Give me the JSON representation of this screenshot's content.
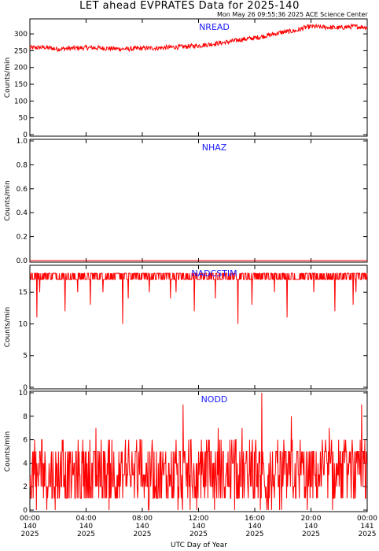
{
  "header": {
    "title": "LET ahead EVPRATES Data for 2025-140",
    "timestamp": "Mon May 26 09:55:36 2025 ACE Science Center"
  },
  "xaxis": {
    "label": "UTC Day of Year",
    "ticks": [
      {
        "time": "00:00",
        "doy": "140",
        "year": "2025"
      },
      {
        "time": "04:00",
        "doy": "140",
        "year": "2025"
      },
      {
        "time": "08:00",
        "doy": "140",
        "year": "2025"
      },
      {
        "time": "12:00",
        "doy": "140",
        "year": "2025"
      },
      {
        "time": "16:00",
        "doy": "140",
        "year": "2025"
      },
      {
        "time": "20:00",
        "doy": "140",
        "year": "2025"
      },
      {
        "time": "00:00",
        "doy": "141",
        "year": "2025"
      }
    ],
    "range_hours": [
      0,
      24
    ]
  },
  "colors": {
    "series": "#ff0000",
    "panel_label": "#1a1aff",
    "axes": "#000000"
  },
  "chart_data": [
    {
      "type": "line",
      "name": "NREAD",
      "ylabel": "Counts/min",
      "ylim": [
        0,
        340
      ],
      "yticks": [
        "0",
        "50",
        "100",
        "150",
        "200",
        "250",
        "300"
      ],
      "x_hours": [
        0,
        1,
        2,
        3,
        4,
        5,
        6,
        7,
        8,
        9,
        10,
        11,
        12,
        13,
        14,
        15,
        16,
        17,
        18,
        19,
        19.5,
        20,
        21,
        22,
        23,
        24
      ],
      "values": [
        258,
        260,
        255,
        257,
        259,
        258,
        256,
        255,
        257,
        258,
        260,
        262,
        265,
        270,
        275,
        283,
        288,
        296,
        305,
        310,
        318,
        322,
        320,
        318,
        322,
        320
      ],
      "noise": 14
    },
    {
      "type": "line",
      "name": "NHAZ",
      "ylabel": "Counts/min",
      "ylim": [
        0,
        1
      ],
      "yticks": [
        "0.0",
        "0.2",
        "0.4",
        "0.6",
        "0.8",
        "1.0"
      ],
      "x_hours": [
        0,
        24
      ],
      "values": [
        0,
        0
      ],
      "noise": 0
    },
    {
      "type": "line",
      "name": "NADCSTIM",
      "ylabel": "Counts/min",
      "ylim": [
        0,
        19
      ],
      "yticks": [
        "0",
        "5",
        "10",
        "15"
      ],
      "base_values": [
        17,
        18
      ],
      "dips": [
        {
          "x_hours": 0.5,
          "value": 11
        },
        {
          "x_hours": 0.7,
          "value": 15
        },
        {
          "x_hours": 2.5,
          "value": 12
        },
        {
          "x_hours": 3.4,
          "value": 15
        },
        {
          "x_hours": 4.3,
          "value": 13
        },
        {
          "x_hours": 5.2,
          "value": 15
        },
        {
          "x_hours": 6.6,
          "value": 10
        },
        {
          "x_hours": 7.0,
          "value": 14
        },
        {
          "x_hours": 8.5,
          "value": 15
        },
        {
          "x_hours": 10.0,
          "value": 14
        },
        {
          "x_hours": 10.4,
          "value": 15
        },
        {
          "x_hours": 11.7,
          "value": 12
        },
        {
          "x_hours": 13.2,
          "value": 14
        },
        {
          "x_hours": 14.8,
          "value": 10
        },
        {
          "x_hours": 15.8,
          "value": 13
        },
        {
          "x_hours": 17.4,
          "value": 15
        },
        {
          "x_hours": 18.3,
          "value": 11
        },
        {
          "x_hours": 20.2,
          "value": 15
        },
        {
          "x_hours": 21.7,
          "value": 12
        },
        {
          "x_hours": 23.0,
          "value": 13
        },
        {
          "x_hours": 23.2,
          "value": 15
        }
      ]
    },
    {
      "type": "line",
      "name": "NODD",
      "ylabel": "Counts/min",
      "ylim": [
        0,
        10
      ],
      "yticks": [
        "0",
        "2",
        "4",
        "6",
        "8",
        "10"
      ],
      "level_range": [
        1,
        5
      ],
      "spikes": [
        {
          "x_hours": 10.9,
          "value": 9
        },
        {
          "x_hours": 16.5,
          "value": 10
        },
        {
          "x_hours": 23.6,
          "value": 9
        },
        {
          "x_hours": 13.4,
          "value": 7
        },
        {
          "x_hours": 4.7,
          "value": 7
        },
        {
          "x_hours": 21.3,
          "value": 7
        },
        {
          "x_hours": 18.6,
          "value": 8
        },
        {
          "x_hours": 6.8,
          "value": 6
        },
        {
          "x_hours": 15.1,
          "value": 7
        }
      ]
    }
  ]
}
